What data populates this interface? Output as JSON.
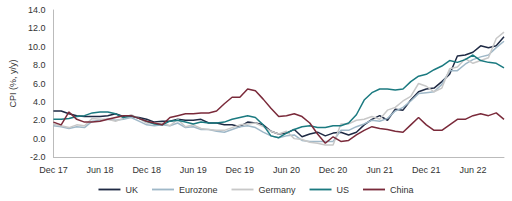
{
  "chart_data": {
    "type": "line",
    "y_label": "CPI (%, y/y)",
    "categories": [
      "Dec 17",
      null,
      null,
      null,
      null,
      null,
      "Jun 18",
      null,
      null,
      null,
      null,
      null,
      "Dec 18",
      null,
      null,
      null,
      null,
      null,
      "Jun 19",
      null,
      null,
      null,
      null,
      null,
      "Dec 19",
      null,
      null,
      null,
      null,
      null,
      "Jun 20",
      null,
      null,
      null,
      null,
      null,
      "Dec 20",
      null,
      null,
      null,
      null,
      null,
      "Jun 21",
      null,
      null,
      null,
      null,
      null,
      "Dec 21",
      null,
      null,
      null,
      null,
      null,
      "Jun 22",
      null,
      null,
      null,
      null
    ],
    "series": [
      {
        "name": "UK",
        "color": "#1f2a44",
        "values": [
          3.0,
          3.0,
          2.7,
          2.5,
          2.4,
          2.4,
          2.4,
          2.5,
          2.7,
          2.4,
          2.4,
          2.3,
          2.1,
          1.8,
          1.9,
          1.9,
          2.1,
          2.0,
          2.0,
          2.1,
          1.7,
          1.7,
          1.5,
          1.5,
          1.3,
          1.8,
          1.7,
          1.5,
          0.8,
          0.5,
          0.6,
          1.0,
          0.2,
          0.5,
          0.7,
          0.3,
          0.6,
          0.7,
          0.4,
          0.7,
          1.5,
          2.1,
          2.5,
          2.0,
          3.2,
          3.1,
          4.2,
          5.1,
          5.4,
          5.5,
          6.2,
          7.0,
          9.0,
          9.1,
          9.4,
          10.1,
          9.9,
          10.1,
          11.1
        ]
      },
      {
        "name": "Eurozone",
        "color": "#9fb8c8",
        "values": [
          1.4,
          1.3,
          1.1,
          1.3,
          1.2,
          1.9,
          2.0,
          2.1,
          2.0,
          2.1,
          2.3,
          1.9,
          1.5,
          1.4,
          1.5,
          1.4,
          1.7,
          1.2,
          1.3,
          1.0,
          1.0,
          0.8,
          0.7,
          1.0,
          1.3,
          1.4,
          1.2,
          0.7,
          0.3,
          0.1,
          0.3,
          0.4,
          -0.2,
          -0.3,
          -0.3,
          -0.3,
          -0.3,
          0.9,
          0.9,
          1.3,
          1.6,
          2.0,
          1.9,
          2.2,
          3.0,
          3.4,
          4.1,
          4.9,
          5.0,
          5.1,
          5.9,
          7.4,
          7.4,
          8.1,
          8.6,
          8.9,
          9.1,
          9.9,
          10.6
        ]
      },
      {
        "name": "Germany",
        "color": "#c8c8c8",
        "values": [
          1.6,
          1.4,
          1.2,
          1.5,
          1.4,
          2.2,
          2.1,
          2.1,
          1.9,
          2.2,
          2.6,
          2.2,
          1.7,
          1.7,
          1.7,
          1.4,
          2.1,
          1.3,
          1.5,
          1.1,
          1.0,
          0.9,
          0.9,
          1.2,
          1.5,
          1.6,
          1.7,
          1.3,
          0.8,
          0.5,
          0.8,
          0.0,
          -0.1,
          -0.4,
          -0.5,
          -0.7,
          -0.7,
          1.6,
          1.6,
          2.0,
          2.1,
          2.4,
          2.1,
          3.1,
          3.4,
          4.1,
          4.6,
          6.0,
          5.7,
          5.1,
          5.5,
          7.6,
          7.8,
          8.7,
          8.2,
          8.5,
          8.8,
          10.9,
          11.6
        ]
      },
      {
        "name": "US",
        "color": "#1b7a80",
        "values": [
          2.1,
          2.1,
          2.2,
          2.4,
          2.5,
          2.8,
          2.9,
          2.9,
          2.7,
          2.3,
          2.5,
          2.2,
          1.9,
          1.6,
          1.5,
          1.9,
          2.0,
          1.8,
          1.6,
          1.8,
          1.7,
          1.7,
          1.8,
          2.1,
          2.3,
          2.5,
          2.3,
          1.5,
          0.3,
          0.1,
          0.6,
          1.0,
          1.3,
          1.4,
          1.2,
          1.2,
          1.4,
          1.4,
          1.7,
          2.6,
          4.2,
          5.0,
          5.4,
          5.4,
          5.3,
          5.4,
          6.2,
          6.8,
          7.0,
          7.5,
          7.9,
          8.5,
          8.3,
          8.6,
          9.1,
          8.5,
          8.3,
          8.2,
          7.7
        ]
      },
      {
        "name": "China",
        "color": "#7a2a3a",
        "values": [
          1.8,
          1.5,
          2.9,
          2.1,
          1.8,
          1.8,
          1.9,
          2.1,
          2.3,
          2.5,
          2.5,
          2.2,
          1.9,
          1.7,
          1.5,
          2.3,
          2.5,
          2.7,
          2.7,
          2.8,
          2.8,
          3.0,
          3.8,
          4.5,
          4.5,
          5.4,
          5.2,
          4.3,
          3.3,
          2.4,
          2.5,
          2.7,
          2.4,
          1.7,
          0.5,
          -0.5,
          0.2,
          -0.3,
          -0.2,
          0.4,
          0.9,
          1.3,
          1.1,
          1.0,
          0.8,
          0.7,
          1.5,
          2.3,
          1.5,
          0.9,
          0.9,
          1.5,
          2.1,
          2.1,
          2.5,
          2.7,
          2.5,
          2.8,
          2.1
        ]
      }
    ],
    "ylim": [
      -2,
      14
    ],
    "yticks": [
      {
        "value": -2,
        "label": "-2.0"
      },
      {
        "value": 0,
        "label": "0.0"
      },
      {
        "value": 2,
        "label": "2.0"
      },
      {
        "value": 4,
        "label": "4.0"
      },
      {
        "value": 6,
        "label": "6.0"
      },
      {
        "value": 8,
        "label": "8.0"
      },
      {
        "value": 10,
        "label": "10.0"
      },
      {
        "value": 12,
        "label": "12.0"
      },
      {
        "value": 14,
        "label": "14.0"
      }
    ],
    "grid": false,
    "legend": "bottom"
  }
}
